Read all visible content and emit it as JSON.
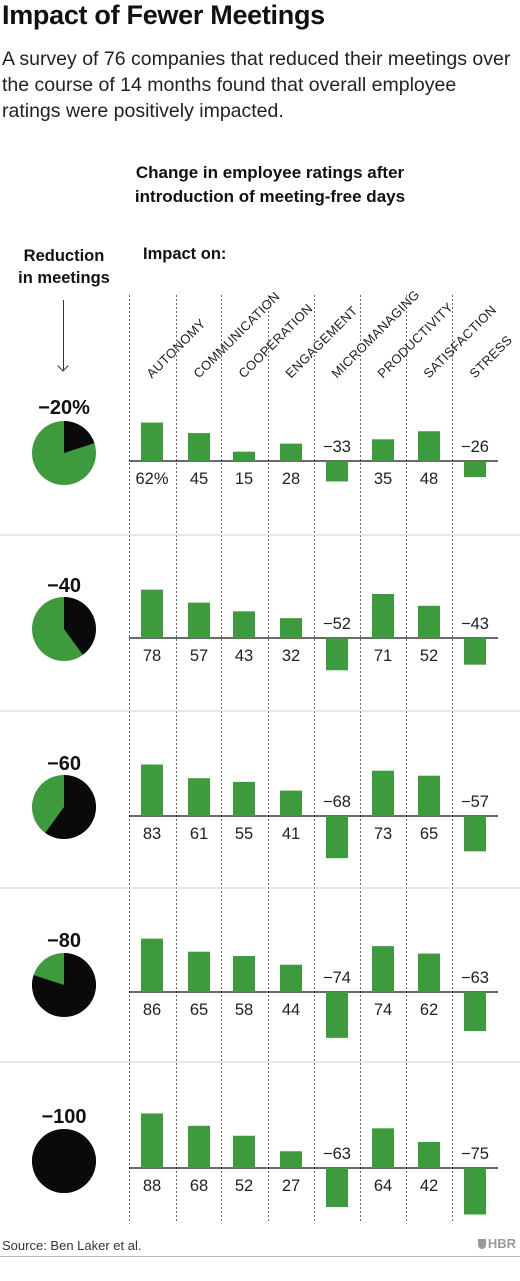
{
  "title": "Impact of Fewer Meetings",
  "subtitle": "A survey of 76 companies that reduced their meetings over the course of 14 months found that overall employee ratings were positively impacted.",
  "chart_heading": [
    "Change in employee ratings after",
    "introduction of meeting-free days"
  ],
  "left_heading": [
    "Reduction",
    "in meetings"
  ],
  "impact_heading": "Impact on:",
  "source": "Source: Ben Laker et al.",
  "brand": "HBR",
  "colors": {
    "bar": "#3d9a3d",
    "pie_green": "#3d9a3d",
    "pie_black": "#0a0a0a",
    "rule": "#cfcfcf"
  },
  "chart_data": {
    "type": "bar",
    "categories": [
      "AUTONOMY",
      "COMMUNICATION",
      "COOPERATION",
      "ENGAGEMENT",
      "MICROMANAGING",
      "PRODUCTIVITY",
      "SATISFACTION",
      "STRESS"
    ],
    "ylim": [
      -80,
      90
    ],
    "series": [
      {
        "name": "−20%",
        "reduction": 20,
        "values": [
          62,
          45,
          15,
          28,
          -33,
          35,
          48,
          -26
        ],
        "labels": [
          "62%",
          "45",
          "15",
          "28",
          "−33",
          "35",
          "48",
          "−26"
        ]
      },
      {
        "name": "−40",
        "reduction": 40,
        "values": [
          78,
          57,
          43,
          32,
          -52,
          71,
          52,
          -43
        ],
        "labels": [
          "78",
          "57",
          "43",
          "32",
          "−52",
          "71",
          "52",
          "−43"
        ]
      },
      {
        "name": "−60",
        "reduction": 60,
        "values": [
          83,
          61,
          55,
          41,
          -68,
          73,
          65,
          -57
        ],
        "labels": [
          "83",
          "61",
          "55",
          "41",
          "−68",
          "73",
          "65",
          "−57"
        ]
      },
      {
        "name": "−80",
        "reduction": 80,
        "values": [
          86,
          65,
          58,
          44,
          -74,
          74,
          62,
          -63
        ],
        "labels": [
          "86",
          "65",
          "58",
          "44",
          "−74",
          "74",
          "62",
          "−63"
        ]
      },
      {
        "name": "−100",
        "reduction": 100,
        "values": [
          88,
          68,
          52,
          27,
          -63,
          64,
          42,
          -75
        ],
        "labels": [
          "88",
          "68",
          "52",
          "27",
          "−63",
          "64",
          "42",
          "−75"
        ]
      }
    ]
  }
}
